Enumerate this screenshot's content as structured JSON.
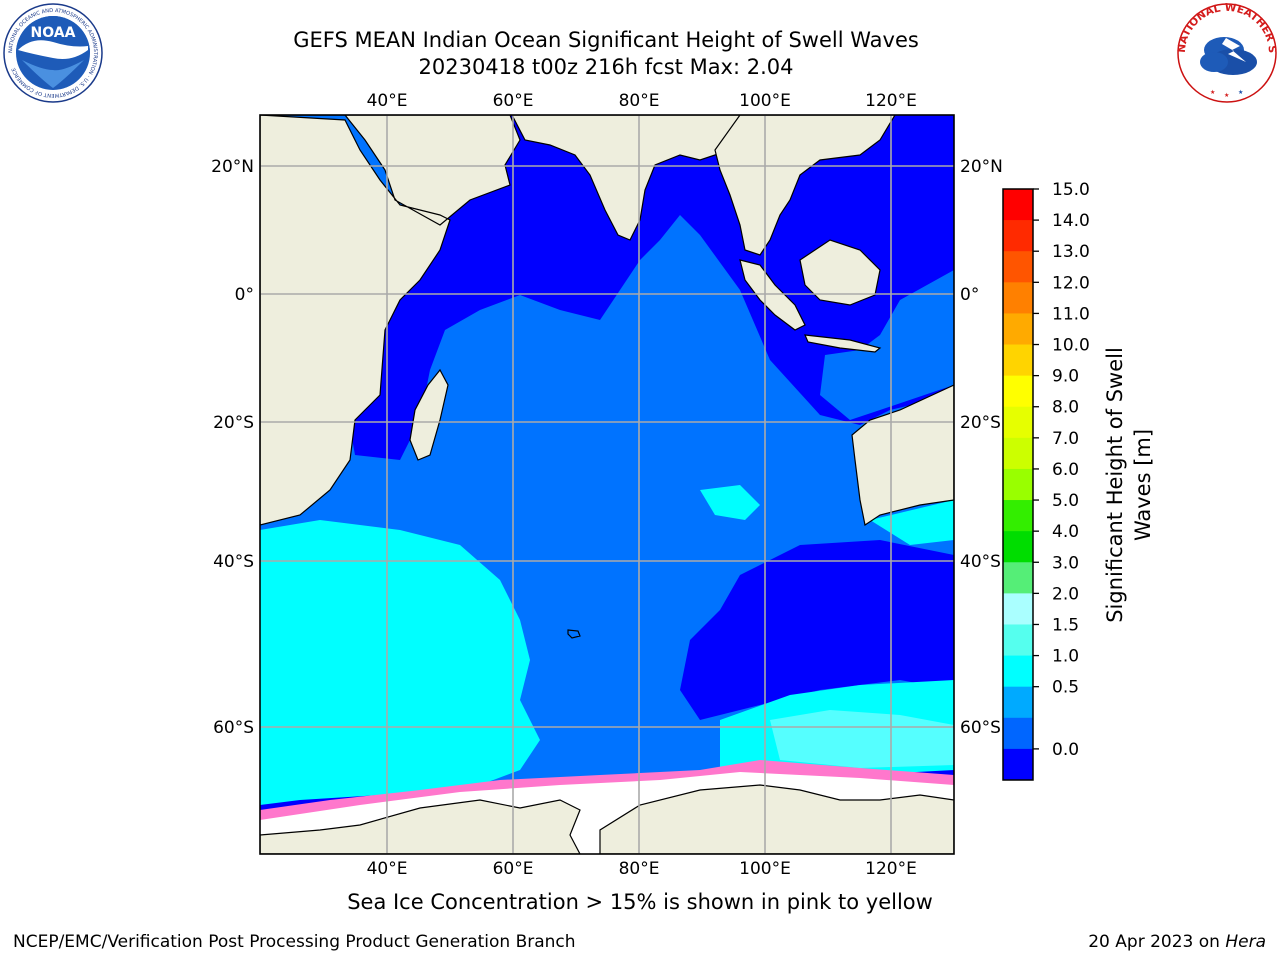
{
  "header": {
    "title_line1": "GEFS MEAN Indian Ocean Significant Height of Swell Waves",
    "title_line2": "20230418 t00z 216h fcst   Max: 2.04"
  },
  "logos": {
    "noaa_text": "NOAA",
    "noaa_ring_text": "NATIONAL OCEANIC AND ATMOSPHERIC ADMINISTRATION · U.S. DEPARTMENT OF COMMERCE",
    "nws_ring_text": "NATIONAL WEATHER SERVICE"
  },
  "map": {
    "lon_ticks_top": [
      "40°E",
      "60°E",
      "80°E",
      "100°E",
      "120°E"
    ],
    "lon_ticks_bottom": [
      "40°E",
      "60°E",
      "80°E",
      "100°E",
      "120°E"
    ],
    "lat_ticks_left": [
      "20°N",
      "0°",
      "20°S",
      "40°S",
      "60°S"
    ],
    "lat_ticks_right": [
      "20°N",
      "0°",
      "20°S",
      "40°S",
      "60°S"
    ]
  },
  "colorbar": {
    "label_line1": "Significant Height of Swell",
    "label_line2": "Waves [m]",
    "ticks": [
      "15.0",
      "14.0",
      "13.0",
      "12.0",
      "11.0",
      "10.0",
      "9.0",
      "8.0",
      "7.0",
      "6.0",
      "5.0",
      "4.0",
      "3.0",
      "2.0",
      "1.5",
      "1.0",
      "0.5",
      "0.0"
    ],
    "colors": [
      "#ff0000",
      "#ff2a00",
      "#ff5500",
      "#ff8000",
      "#ffaa00",
      "#ffd400",
      "#ffff00",
      "#e6ff00",
      "#ccff00",
      "#99ff00",
      "#33ee00",
      "#00dd00",
      "#55ee77",
      "#aaffff",
      "#55ffee",
      "#00ffff",
      "#00aaff",
      "#0066ff",
      "#0000ff"
    ]
  },
  "ocean_colors": {
    "level_0_05": "#0000ff",
    "level_05_10": "#0073ff",
    "level_10_15": "#00ffff",
    "level_15_20": "#55ffff",
    "land": "#eeeedd",
    "ice": "#ffffff"
  },
  "caption": "Sea Ice Concentration > 15% is shown in pink to yellow",
  "footer": {
    "left": "NCEP/EMC/Verification Post Processing Product Generation Branch",
    "right_date": "20 Apr 2023 on ",
    "right_host": "Hera"
  }
}
